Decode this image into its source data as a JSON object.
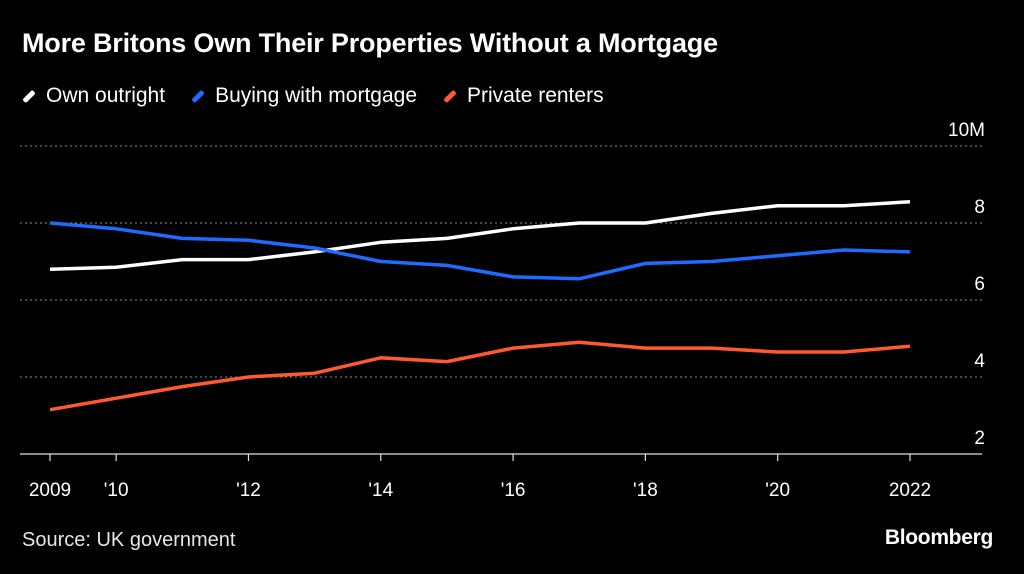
{
  "chart_data": {
    "type": "line",
    "title": "More Britons Own Their Properties Without a Mortgage",
    "x": [
      2009,
      2010,
      2011,
      2012,
      2013,
      2014,
      2015,
      2016,
      2017,
      2018,
      2019,
      2020,
      2021,
      2022
    ],
    "x_tick_values": [
      2009,
      2010,
      2012,
      2014,
      2016,
      2018,
      2020,
      2022
    ],
    "x_tick_labels": [
      "2009",
      "'10",
      "'12",
      "'14",
      "'16",
      "'18",
      "'20",
      "2022"
    ],
    "y_tick_values": [
      2,
      4,
      6,
      8,
      10
    ],
    "y_tick_labels": [
      "2",
      "4",
      "6",
      "8",
      "10M"
    ],
    "ylim": [
      2,
      10
    ],
    "grid": true,
    "legend_position": "top-left",
    "series": [
      {
        "name": "Own outright",
        "color": "#ffffff",
        "values": [
          6.8,
          6.85,
          7.05,
          7.05,
          7.25,
          7.5,
          7.6,
          7.85,
          8.0,
          8.0,
          8.25,
          8.45,
          8.45,
          8.55
        ]
      },
      {
        "name": "Buying with mortgage",
        "color": "#1f6bff",
        "values": [
          8.0,
          7.85,
          7.6,
          7.55,
          7.35,
          7.0,
          6.9,
          6.6,
          6.55,
          6.95,
          7.0,
          7.15,
          7.3,
          7.25
        ]
      },
      {
        "name": "Private renters",
        "color": "#ff5a2e",
        "values": [
          3.15,
          3.45,
          3.75,
          4.0,
          4.1,
          4.5,
          4.4,
          4.75,
          4.9,
          4.75,
          4.75,
          4.65,
          4.65,
          4.8
        ]
      }
    ]
  },
  "footer": {
    "source": "Source: UK government",
    "brand": "Bloomberg"
  }
}
